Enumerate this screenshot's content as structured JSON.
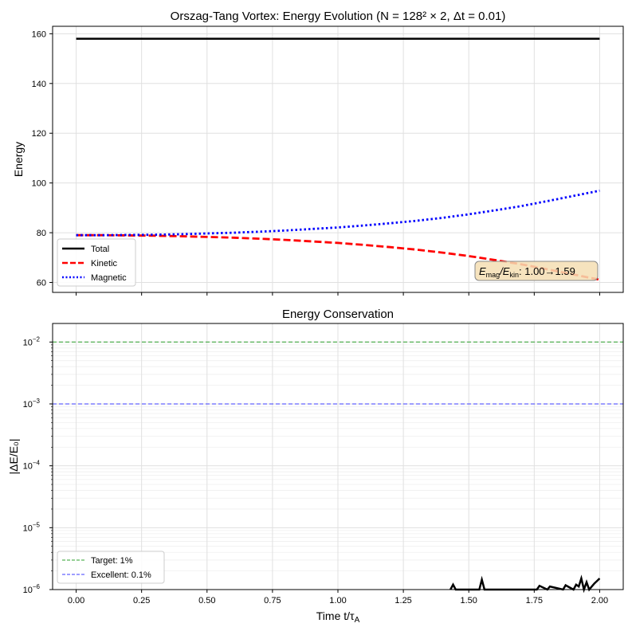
{
  "chart_data": [
    {
      "type": "line",
      "title": "Orszag-Tang Vortex: Energy Evolution (N = 128² × 2, Δt = 0.01)",
      "xlabel": "",
      "ylabel": "Energy",
      "xlim": [
        -0.09,
        2.09
      ],
      "ylim": [
        56,
        163
      ],
      "xticks": [
        0.0,
        0.25,
        0.5,
        0.75,
        1.0,
        1.25,
        1.5,
        1.75,
        2.0
      ],
      "yticks": [
        60,
        80,
        100,
        120,
        140,
        160
      ],
      "grid": true,
      "legend_position": "lower-left",
      "series": [
        {
          "name": "Total",
          "color": "#000000",
          "style": "solid",
          "x": [
            0.0,
            0.5,
            1.0,
            1.5,
            2.0
          ],
          "y": [
            158,
            158,
            158,
            158,
            158
          ]
        },
        {
          "name": "Kinetic",
          "color": "#ff0000",
          "style": "dashed",
          "x": [
            0.0,
            0.1,
            0.2,
            0.3,
            0.4,
            0.5,
            0.6,
            0.7,
            0.8,
            0.9,
            1.0,
            1.1,
            1.2,
            1.3,
            1.4,
            1.5,
            1.6,
            1.7,
            1.8,
            1.9,
            2.0
          ],
          "y": [
            79,
            79,
            78.9,
            78.8,
            78.6,
            78.3,
            78.0,
            77.6,
            77.1,
            76.5,
            75.9,
            75.1,
            74.2,
            73.2,
            72.0,
            70.6,
            69.0,
            67.3,
            65.3,
            63.2,
            61.1
          ]
        },
        {
          "name": "Magnetic",
          "color": "#0000ff",
          "style": "dotted",
          "x": [
            0.0,
            0.1,
            0.2,
            0.3,
            0.4,
            0.5,
            0.6,
            0.7,
            0.8,
            0.9,
            1.0,
            1.1,
            1.2,
            1.3,
            1.4,
            1.5,
            1.6,
            1.7,
            1.8,
            1.9,
            2.0
          ],
          "y": [
            79,
            79,
            79.1,
            79.2,
            79.4,
            79.7,
            80.0,
            80.4,
            80.9,
            81.5,
            82.1,
            82.9,
            83.8,
            84.8,
            86.0,
            87.4,
            89.0,
            90.7,
            92.7,
            94.8,
            96.9
          ]
        }
      ],
      "annotation": {
        "prefix": "E",
        "sub1": "mag",
        "slash": "/E",
        "sub2": "kin",
        "suffix": ": 1.00→1.59"
      }
    },
    {
      "type": "line",
      "title": "Energy Conservation",
      "xlabel": "Time t/τ",
      "xlabel_sub": "A",
      "ylabel": "|ΔE/E₀|",
      "xlim": [
        -0.09,
        2.09
      ],
      "ylim_log10": [
        -6,
        -1.7
      ],
      "yscale": "log",
      "xticks": [
        0.0,
        0.25,
        0.5,
        0.75,
        1.0,
        1.25,
        1.5,
        1.75,
        2.0
      ],
      "yticks_exp": [
        -6,
        -5,
        -4,
        -3,
        -2
      ],
      "grid": true,
      "legend_position": "lower-left",
      "hlines": [
        {
          "name": "Target: 1%",
          "value_log10": -2,
          "color": "#2ca02c"
        },
        {
          "name": "Excellent: 0.1%",
          "value_log10": -3,
          "color": "#3b3bff"
        }
      ],
      "series": [
        {
          "name": "|ΔE/E₀|",
          "color": "#000000",
          "style": "solid",
          "x": [
            1.43,
            1.44,
            1.45,
            1.54,
            1.55,
            1.56,
            1.76,
            1.77,
            1.8,
            1.81,
            1.86,
            1.87,
            1.9,
            1.91,
            1.92,
            1.93,
            1.94,
            1.95,
            1.96,
            1.97,
            1.98,
            1.99,
            2.0
          ],
          "log10y": [
            -6.0,
            -5.92,
            -6.0,
            -6.0,
            -5.84,
            -6.0,
            -6.0,
            -5.94,
            -6.0,
            -5.95,
            -6.0,
            -5.93,
            -6.0,
            -5.92,
            -5.95,
            -5.82,
            -6.0,
            -5.88,
            -6.0,
            -5.95,
            -5.9,
            -5.86,
            -5.82
          ]
        }
      ]
    }
  ]
}
